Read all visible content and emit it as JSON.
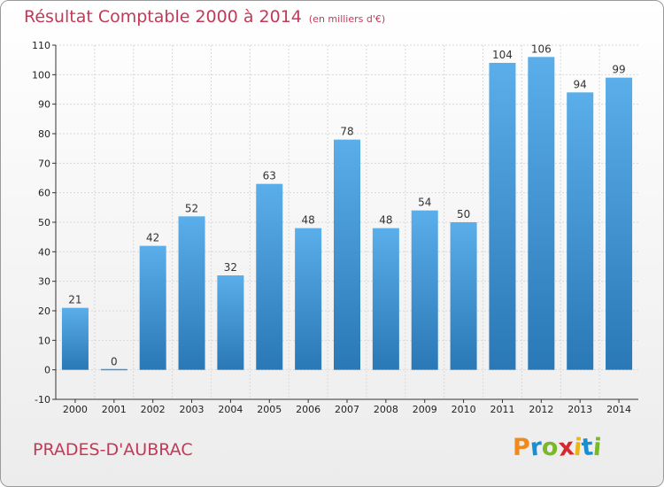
{
  "header": {
    "title": "Résultat Comptable 2000 à 2014",
    "unit": "(en milliers d'€)"
  },
  "footer": {
    "place": "PRADES-D'AUBRAC",
    "logo": "Proxiti"
  },
  "colors": {
    "title": "#c23a57",
    "bar_top": "#5aaee9",
    "bar_bottom": "#2a78b6",
    "grid": "#d9d9d9"
  },
  "chart_data": {
    "type": "bar",
    "categories": [
      "2000",
      "2001",
      "2002",
      "2003",
      "2004",
      "2005",
      "2006",
      "2007",
      "2008",
      "2009",
      "2010",
      "2011",
      "2012",
      "2013",
      "2014"
    ],
    "values": [
      21,
      0,
      42,
      52,
      32,
      63,
      48,
      78,
      48,
      54,
      50,
      104,
      106,
      94,
      99
    ],
    "data_labels": [
      "21",
      "0",
      "42",
      "52",
      "32",
      "63",
      "48",
      "78",
      "48",
      "54",
      "50",
      "104",
      "106",
      "94",
      "99"
    ],
    "y_ticks": [
      -10,
      0,
      10,
      20,
      30,
      40,
      50,
      60,
      70,
      80,
      90,
      100,
      110
    ],
    "ylim": [
      -10,
      110
    ],
    "grid": true,
    "title": "Résultat Comptable 2000 à 2014",
    "xlabel": "",
    "ylabel": ""
  }
}
